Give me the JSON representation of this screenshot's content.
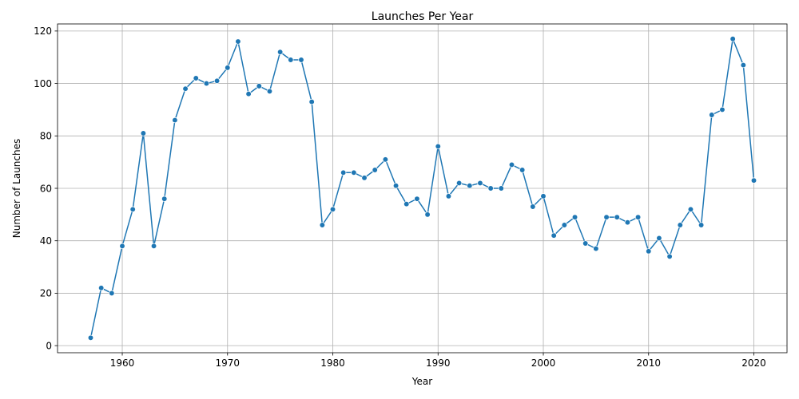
{
  "chart_data": {
    "type": "line",
    "title": "Launches Per Year",
    "xlabel": "Year",
    "ylabel": "Number of Launches",
    "xlim": [
      1953.85,
      2023.15
    ],
    "ylim": [
      -2.7,
      122.7
    ],
    "xticks": [
      1960,
      1970,
      1980,
      1990,
      2000,
      2010,
      2020
    ],
    "yticks": [
      0,
      20,
      40,
      60,
      80,
      100,
      120
    ],
    "grid": true,
    "line_color": "#1f77b4",
    "series": [
      {
        "x": [
          1957,
          1958,
          1959,
          1960,
          1961,
          1962,
          1963,
          1964,
          1965,
          1966,
          1967,
          1968,
          1969,
          1970,
          1971,
          1972,
          1973,
          1974,
          1975,
          1976,
          1977,
          1978,
          1979,
          1980,
          1981,
          1982,
          1983,
          1984,
          1985,
          1986,
          1987,
          1988,
          1989,
          1990,
          1991,
          1992,
          1993,
          1994,
          1995,
          1996,
          1997,
          1998,
          1999,
          2000,
          2001,
          2002,
          2003,
          2004,
          2005,
          2006,
          2007,
          2008,
          2009,
          2010,
          2011,
          2012,
          2013,
          2014,
          2015,
          2016,
          2017,
          2018,
          2019,
          2020
        ],
        "values": [
          3,
          22,
          20,
          38,
          52,
          81,
          38,
          56,
          86,
          98,
          102,
          100,
          101,
          106,
          116,
          96,
          99,
          97,
          112,
          109,
          109,
          93,
          46,
          52,
          66,
          66,
          64,
          67,
          71,
          61,
          54,
          56,
          50,
          76,
          57,
          62,
          61,
          62,
          60,
          60,
          69,
          67,
          53,
          57,
          42,
          46,
          49,
          39,
          37,
          49,
          49,
          47,
          49,
          36,
          41,
          34,
          46,
          52,
          46,
          88,
          90,
          117,
          107,
          63
        ]
      }
    ]
  }
}
